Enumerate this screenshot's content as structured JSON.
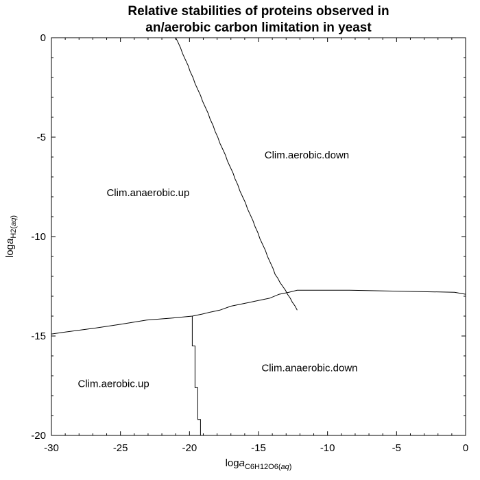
{
  "chart_data": {
    "type": "line",
    "title": "Relative stabilities of proteins observed in",
    "subtitle": "an/aerobic carbon limitation in yeast",
    "xlabel": {
      "prefix": "log",
      "italic": "a",
      "sub": "C6H12O6(",
      "sub_italic": "aq",
      "sub_end": ")"
    },
    "ylabel": {
      "prefix": "log",
      "italic": "a",
      "sub": "H2(",
      "sub_italic": "aq",
      "sub_end": ")"
    },
    "xlim": [
      -30,
      0
    ],
    "ylim": [
      -20,
      0
    ],
    "x_ticks": [
      -30,
      -25,
      -20,
      -15,
      -10,
      -5,
      0
    ],
    "y_ticks": [
      0,
      -5,
      -10,
      -15,
      -20
    ],
    "x_tick_labels": [
      "-30",
      "-25",
      "-20",
      "-15",
      "-10",
      "-5",
      "0"
    ],
    "y_tick_labels": [
      "0",
      "-5",
      "-10",
      "-15",
      "-20"
    ],
    "grid": false,
    "regions": [
      {
        "label": "Clim.aerobic.down",
        "x": -11.5,
        "y": -5.9
      },
      {
        "label": "Clim.anaerobic.up",
        "x": -23,
        "y": -7.8
      },
      {
        "label": "Clim.anaerobic.down",
        "x": -11.3,
        "y": -16.6
      },
      {
        "label": "Clim.aerobic.up",
        "x": -25.5,
        "y": -17.4
      }
    ],
    "series": [
      {
        "x": [
          -21,
          -20.85,
          -20.65,
          -20.5,
          -20.3,
          -20.1,
          -19.95,
          -19.75,
          -19.6,
          -19.4,
          -19.2,
          -19.05,
          -18.85,
          -18.65,
          -18.5,
          -18.3,
          -18.15,
          -17.95,
          -17.8,
          -17.6,
          -17.4,
          -17.25,
          -17.05,
          -16.85,
          -16.7,
          -16.5,
          -16.35,
          -16.15,
          -15.95,
          -15.8,
          -15.6,
          -15.4,
          -15.25,
          -15.05,
          -14.9,
          -14.7,
          -14.5,
          -14.35,
          -14.15,
          -13.95,
          -13.8,
          -13.6,
          -13.45,
          -13.25,
          -13.05,
          -12.9,
          -12.7,
          -12.55,
          -12.35,
          -12.2
        ],
        "y": [
          0,
          -0.2,
          -0.5,
          -0.8,
          -1.1,
          -1.4,
          -1.7,
          -2,
          -2.3,
          -2.6,
          -2.9,
          -3.2,
          -3.5,
          -3.8,
          -4.1,
          -4.4,
          -4.7,
          -5,
          -5.3,
          -5.6,
          -5.9,
          -6.2,
          -6.5,
          -6.8,
          -7.1,
          -7.4,
          -7.7,
          -8,
          -8.3,
          -8.6,
          -8.9,
          -9.2,
          -9.5,
          -9.8,
          -10.1,
          -10.4,
          -10.7,
          -11,
          -11.3,
          -11.6,
          -11.9,
          -12.1,
          -12.3,
          -12.5,
          -12.7,
          -12.9,
          -13.1,
          -13.3,
          -13.5,
          -13.7
        ]
      },
      {
        "x": [
          -30,
          -29,
          -26.8,
          -24.9,
          -23.1,
          -21.3,
          -19.8,
          -19.1,
          -18.5,
          -17.8,
          -17.0,
          -16.3,
          -15.6,
          -14.9,
          -14.2,
          -13.5,
          -12.8,
          -12.2,
          -8.4,
          -0.8,
          0
        ],
        "y": [
          -14.9,
          -14.8,
          -14.6,
          -14.4,
          -14.2,
          -14.1,
          -14.0,
          -13.9,
          -13.8,
          -13.7,
          -13.5,
          -13.4,
          -13.3,
          -13.2,
          -13.1,
          -12.9,
          -12.8,
          -12.7,
          -12.7,
          -12.8,
          -12.9
        ]
      },
      {
        "x": [
          -19.8,
          -19.8,
          -19.6,
          -19.6,
          -19.4,
          -19.4,
          -19.2,
          -19.2,
          -19.1
        ],
        "y": [
          -14.0,
          -15.5,
          -15.5,
          -17.6,
          -17.6,
          -19.2,
          -19.2,
          -20,
          -20
        ]
      }
    ]
  }
}
